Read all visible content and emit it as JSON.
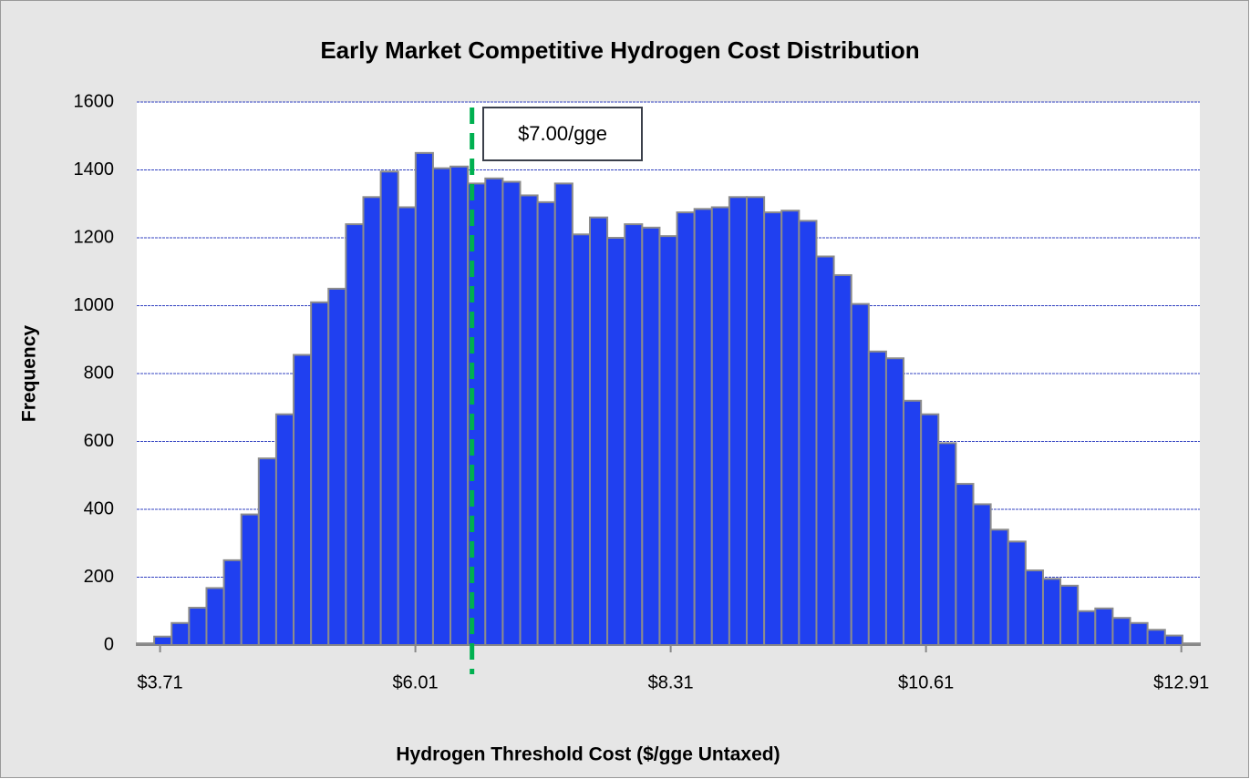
{
  "chart_data": {
    "type": "histogram",
    "title": "Early Market Competitive Hydrogen Cost Distribution",
    "x_label": "Hydrogen Threshold Cost ($/gge Untaxed)",
    "y_label": "Frequency",
    "color": "#2040f0",
    "bins": [
      3.5,
      3.657,
      3.814,
      3.971,
      4.128,
      4.285,
      4.442,
      4.599,
      4.756,
      4.913,
      5.07,
      5.227,
      5.384,
      5.541,
      5.698,
      5.855,
      6.012,
      6.169,
      6.326,
      6.483,
      6.64,
      6.797,
      6.954,
      7.111,
      7.268,
      7.425,
      7.582,
      7.739,
      7.896,
      8.053,
      8.21,
      8.367,
      8.524,
      8.681,
      8.838,
      8.995,
      9.152,
      9.309,
      9.466,
      9.623,
      9.78,
      9.937,
      10.094,
      10.251,
      10.408,
      10.565,
      10.722,
      10.879,
      11.036,
      11.193,
      11.35,
      11.507,
      11.664,
      11.821,
      11.978,
      12.135,
      12.292,
      12.449,
      12.606,
      12.763,
      12.92,
      13.077
    ],
    "values": [
      5,
      25,
      65,
      110,
      168,
      250,
      385,
      550,
      680,
      855,
      1010,
      1050,
      1240,
      1320,
      1395,
      1290,
      1450,
      1405,
      1410,
      1360,
      1375,
      1365,
      1325,
      1305,
      1360,
      1210,
      1260,
      1200,
      1240,
      1230,
      1205,
      1275,
      1285,
      1290,
      1320,
      1320,
      1275,
      1280,
      1250,
      1145,
      1090,
      1005,
      865,
      845,
      720,
      680,
      595,
      475,
      415,
      340,
      305,
      220,
      195,
      175,
      100,
      108,
      80,
      65,
      45,
      28,
      5
    ],
    "xlim": [
      3.5,
      13.077
    ],
    "ylim": [
      0,
      1600
    ],
    "xticks": [
      {
        "value": 3.71,
        "label": "$3.71"
      },
      {
        "value": 6.01,
        "label": "$6.01"
      },
      {
        "value": 8.31,
        "label": "$8.31"
      },
      {
        "value": 10.61,
        "label": "$10.61"
      },
      {
        "value": 12.91,
        "label": "$12.91"
      }
    ],
    "yticks": [
      0,
      200,
      400,
      600,
      800,
      1000,
      1200,
      1400,
      1600
    ],
    "grid": true,
    "annotation": {
      "text": "$7.00/gge",
      "x": 6.52,
      "color": "#00b050"
    }
  }
}
